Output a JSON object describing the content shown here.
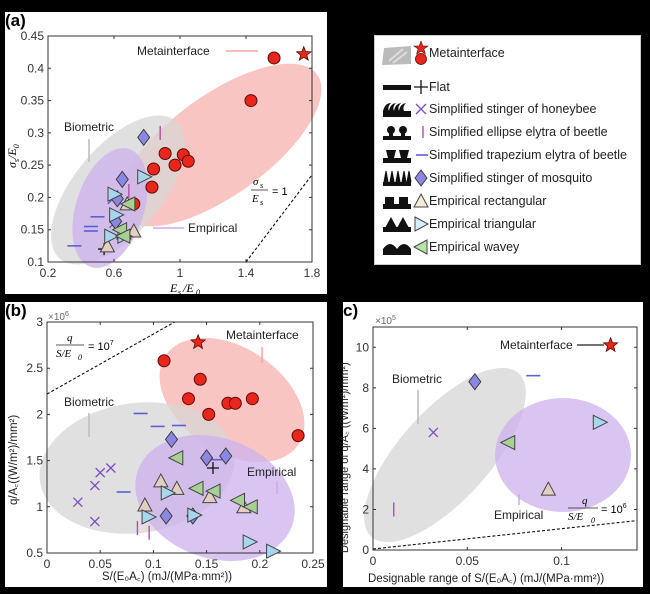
{
  "figure": {
    "panel_labels": [
      "(a)",
      "(b)",
      "c)"
    ]
  },
  "legend": {
    "items": [
      {
        "label": "Metainterface",
        "marker": "star-and-circle",
        "color": "#e8261b",
        "structure_icon": "textured-surface-icon"
      },
      {
        "label": "Flat",
        "marker": "plus",
        "color": "#111111",
        "structure_icon": "flat-bar-icon"
      },
      {
        "label": "Simplified stinger of honeybee",
        "marker": "x",
        "color": "#7b4fbf",
        "structure_icon": "curved-spikes-icon"
      },
      {
        "label": "Simplified ellipse elytra of beetle",
        "marker": "vline",
        "color": "#b04fa8",
        "structure_icon": "mushroom-pillars-icon"
      },
      {
        "label": "Simplified trapezium elytra of beetle",
        "marker": "hline",
        "color": "#5a5fd6",
        "structure_icon": "trapezium-pillars-icon"
      },
      {
        "label": "Simplified stinger of mosquito",
        "marker": "diamond",
        "color": "#8b87e0",
        "structure_icon": "needle-spikes-icon"
      },
      {
        "label": "Empirical rectangular",
        "marker": "triangle-up",
        "color": "#e3cfc0",
        "structure_icon": "rectangular-pillars-icon"
      },
      {
        "label": "Empirical triangular",
        "marker": "triangle-right",
        "color": "#a9d6ef",
        "structure_icon": "triangular-peaks-icon"
      },
      {
        "label": "Empirical wavey",
        "marker": "triangle-left",
        "color": "#a8cf94",
        "structure_icon": "wavy-bumps-icon"
      }
    ]
  },
  "chart_data": [
    {
      "id": "a",
      "type": "scatter",
      "panel_label": "(a)",
      "xlabel": "E_s / E_0",
      "ylabel": "σ_s / E_0",
      "xlim": [
        0.2,
        1.8
      ],
      "ylim": [
        0.1,
        0.45
      ],
      "xticks": [
        0.2,
        0.6,
        1,
        1.4,
        1.8
      ],
      "xtick_labels": [
        "0.2",
        "0.6",
        "1",
        "1.4",
        "1.8"
      ],
      "yticks": [
        0.1,
        0.15,
        0.2,
        0.25,
        0.3,
        0.35,
        0.4,
        0.45
      ],
      "ytick_labels": [
        "0.1",
        "0.15",
        "0.2",
        "0.25",
        "0.3",
        "0.35",
        "0.4",
        "0.45"
      ],
      "regions": [
        {
          "name": "Metainterface",
          "color": "#f4a5a0",
          "label": "Metainterface"
        },
        {
          "name": "Biometric",
          "color": "#cfcfcf",
          "label": "Biometric"
        },
        {
          "name": "Empirical",
          "color": "#c9a9ea",
          "label": "Empirical"
        }
      ],
      "reference_line": {
        "label": "σs/Es = 1",
        "x": [
          1.4,
          1.8
        ],
        "y": [
          0.1,
          0.235
        ]
      },
      "series": [
        {
          "name": "Metainterface (star)",
          "marker": "star",
          "points": [
            [
              1.75,
              0.422
            ]
          ]
        },
        {
          "name": "Metainterface",
          "marker": "circle",
          "points": [
            [
              1.57,
              0.416
            ],
            [
              1.43,
              0.35
            ],
            [
              0.91,
              0.268
            ],
            [
              1.02,
              0.266
            ],
            [
              0.97,
              0.25
            ],
            [
              1.05,
              0.256
            ],
            [
              0.84,
              0.244
            ],
            [
              0.83,
              0.216
            ],
            [
              0.72,
              0.19
            ]
          ]
        },
        {
          "name": "Flat",
          "marker": "plus",
          "points": [
            [
              0.54,
              0.12
            ]
          ]
        },
        {
          "name": "Simplified stinger of honeybee",
          "marker": "x",
          "points": [
            [
              0.59,
              0.197
            ],
            [
              0.6,
              0.16
            ]
          ]
        },
        {
          "name": "Simplified ellipse elytra of beetle",
          "marker": "vline",
          "points": [
            [
              0.88,
              0.3
            ],
            [
              0.69,
              0.21
            ]
          ]
        },
        {
          "name": "Simplified trapezium elytra of beetle",
          "marker": "hline",
          "points": [
            [
              0.36,
              0.125
            ],
            [
              0.46,
              0.148
            ],
            [
              0.46,
              0.155
            ],
            [
              0.5,
              0.17
            ]
          ]
        },
        {
          "name": "Simplified stinger of mosquito",
          "marker": "diamond",
          "points": [
            [
              0.78,
              0.293
            ],
            [
              0.65,
              0.228
            ],
            [
              0.62,
              0.198
            ],
            [
              0.61,
              0.163
            ]
          ]
        },
        {
          "name": "Empirical rectangular",
          "marker": "triangle-up",
          "points": [
            [
              0.68,
              0.19
            ],
            [
              0.72,
              0.148
            ],
            [
              0.66,
              0.145
            ],
            [
              0.56,
              0.125
            ]
          ]
        },
        {
          "name": "Empirical triangular",
          "marker": "triangle-right",
          "points": [
            [
              0.78,
              0.232
            ],
            [
              0.6,
              0.205
            ],
            [
              0.61,
              0.173
            ],
            [
              0.58,
              0.14
            ],
            [
              0.66,
              0.14
            ]
          ]
        },
        {
          "name": "Empirical wavey",
          "marker": "triangle-left",
          "points": [
            [
              0.64,
              0.15
            ],
            [
              0.66,
              0.14
            ],
            [
              0.69,
              0.19
            ]
          ]
        }
      ]
    },
    {
      "id": "b",
      "type": "scatter",
      "panel_label": "(b)",
      "xlabel": "S/(E_0 A_c) (mJ/(MPa·mm²))",
      "ylabel": "q/A_c ((W/m²)/mm²)",
      "y_multiplier": "×10^6",
      "xlim": [
        0,
        0.25
      ],
      "ylim": [
        0.5,
        3
      ],
      "xticks": [
        0,
        0.05,
        0.1,
        0.15,
        0.2,
        0.25
      ],
      "xtick_labels": [
        "0",
        "0.05",
        "0.1",
        "0.15",
        "0.2",
        "0.25"
      ],
      "yticks": [
        0.5,
        1,
        1.5,
        2,
        2.5,
        3
      ],
      "ytick_labels": [
        "0.5",
        "1",
        "1.5",
        "2",
        "2.5",
        "3"
      ],
      "regions": [
        {
          "name": "Metainterface",
          "color": "#f4a5a0",
          "label": "Metainterface"
        },
        {
          "name": "Biometric",
          "color": "#cfcfcf",
          "label": "Biometric"
        },
        {
          "name": "Empirical",
          "color": "#c9a9ea",
          "label": "Empirical"
        }
      ],
      "reference_line": {
        "label": "q/(S/E0) = 10^7",
        "x": [
          0,
          0.12
        ],
        "y": [
          2.22,
          3.0
        ]
      },
      "series": [
        {
          "name": "Metainterface (star)",
          "marker": "star",
          "points": [
            [
              0.142,
              2.78
            ]
          ]
        },
        {
          "name": "Metainterface",
          "marker": "circle",
          "points": [
            [
              0.11,
              2.58
            ],
            [
              0.144,
              2.38
            ],
            [
              0.133,
              2.17
            ],
            [
              0.152,
              2.0
            ],
            [
              0.17,
              2.12
            ],
            [
              0.177,
              2.12
            ],
            [
              0.193,
              2.17
            ],
            [
              0.236,
              1.77
            ]
          ]
        },
        {
          "name": "Flat",
          "marker": "plus",
          "points": [
            [
              0.156,
              1.42
            ]
          ]
        },
        {
          "name": "Simplified stinger of honeybee",
          "marker": "x",
          "points": [
            [
              0.029,
              1.05
            ],
            [
              0.045,
              1.23
            ],
            [
              0.05,
              1.37
            ],
            [
              0.06,
              1.42
            ],
            [
              0.045,
              0.84
            ]
          ]
        },
        {
          "name": "Simplified ellipse elytra of beetle",
          "marker": "vline",
          "points": [
            [
              0.085,
              0.77
            ],
            [
              0.096,
              0.72
            ]
          ]
        },
        {
          "name": "Simplified trapezium elytra of beetle",
          "marker": "hline",
          "points": [
            [
              0.088,
              2.01
            ],
            [
              0.104,
              1.87
            ],
            [
              0.124,
              1.88
            ],
            [
              0.072,
              1.16
            ],
            [
              0.158,
              1.51
            ]
          ]
        },
        {
          "name": "Simplified stinger of mosquito",
          "marker": "diamond",
          "points": [
            [
              0.117,
              1.73
            ],
            [
              0.15,
              1.53
            ],
            [
              0.168,
              1.55
            ],
            [
              0.112,
              0.9
            ],
            [
              0.137,
              0.9
            ]
          ]
        },
        {
          "name": "Empirical rectangular",
          "marker": "triangle-up",
          "points": [
            [
              0.107,
              1.28
            ],
            [
              0.122,
              1.2
            ],
            [
              0.092,
              1.02
            ],
            [
              0.153,
              1.11
            ],
            [
              0.185,
              1.0
            ]
          ]
        },
        {
          "name": "Empirical triangular",
          "marker": "triangle-right",
          "points": [
            [
              0.113,
              1.15
            ],
            [
              0.095,
              0.89
            ],
            [
              0.138,
              0.91
            ],
            [
              0.19,
              0.62
            ],
            [
              0.212,
              0.52
            ]
          ]
        },
        {
          "name": "Empirical wavey",
          "marker": "triangle-left",
          "points": [
            [
              0.122,
              1.53
            ],
            [
              0.141,
              1.2
            ],
            [
              0.157,
              1.17
            ],
            [
              0.18,
              1.07
            ],
            [
              0.192,
              1.0
            ]
          ]
        }
      ]
    },
    {
      "id": "c",
      "type": "scatter",
      "panel_label": "c)",
      "xlabel": "Designable range of S/(E_0 A_c) (mJ/(MPa·mm²))",
      "ylabel": "Designable range of q/A_c ((W/m²)/mm²)",
      "y_multiplier": "×10^5",
      "xlim": [
        0,
        0.14
      ],
      "ylim": [
        0,
        11
      ],
      "xticks": [
        0,
        0.05,
        0.1
      ],
      "xtick_labels": [
        "0",
        "0.05",
        "0.1"
      ],
      "yticks": [
        0,
        2,
        4,
        6,
        8,
        10
      ],
      "ytick_labels": [
        "0",
        "2",
        "4",
        "6",
        "8",
        "10"
      ],
      "regions": [
        {
          "name": "Biometric",
          "color": "#cfcfcf",
          "label": "Biometric"
        },
        {
          "name": "Empirical",
          "color": "#c9a9ea",
          "label": "Empirical"
        }
      ],
      "annotations": [
        {
          "label": "Metainterface",
          "points_to": [
            0.126,
            10.1
          ]
        }
      ],
      "reference_line": {
        "label": "q/(S/E0) = 10^6",
        "x": [
          0,
          0.14
        ],
        "y": [
          0.05,
          1.45
        ]
      },
      "series": [
        {
          "name": "Metainterface (star)",
          "marker": "star",
          "points": [
            [
              0.126,
              10.1
            ]
          ]
        },
        {
          "name": "Simplified stinger of honeybee",
          "marker": "x",
          "points": [
            [
              0.032,
              5.8
            ]
          ]
        },
        {
          "name": "Simplified ellipse elytra of beetle",
          "marker": "vline",
          "points": [
            [
              0.011,
              2.0
            ]
          ]
        },
        {
          "name": "Simplified trapezium elytra of beetle",
          "marker": "hline",
          "points": [
            [
              0.085,
              8.6
            ]
          ]
        },
        {
          "name": "Simplified stinger of mosquito",
          "marker": "diamond",
          "points": [
            [
              0.054,
              8.3
            ]
          ]
        },
        {
          "name": "Empirical rectangular",
          "marker": "triangle-up",
          "points": [
            [
              0.093,
              3.0
            ]
          ]
        },
        {
          "name": "Empirical triangular",
          "marker": "triangle-right",
          "points": [
            [
              0.12,
              6.3
            ]
          ]
        },
        {
          "name": "Empirical wavey",
          "marker": "triangle-left",
          "points": [
            [
              0.072,
              5.3
            ]
          ]
        }
      ]
    }
  ],
  "labels": {
    "a": {
      "metainterface": "Metainterface",
      "biometric": "Biometric",
      "empirical": "Empirical",
      "ref_num": "σ",
      "ref_num_sub": "s",
      "ref_den": "E",
      "ref_den_sub": "s",
      "ref_rhs": "= 1",
      "xlabel_main": "E",
      "xlabel_sub1": "s",
      "xlabel_mid": "/E",
      "xlabel_sub2": "0",
      "ylabel": "σs/E0"
    },
    "b": {
      "metainterface": "Metainterface",
      "biometric": "Biometric",
      "empirical": "Empirical",
      "multiplier": "×10",
      "multiplier_exp": "6",
      "ref_num": "q",
      "ref_den": "S/E",
      "ref_den_sub": "0",
      "ref_rhs": "= 10",
      "ref_rhs_exp": "7",
      "xlabel": "S/(E₀A꜀) (mJ/(MPa·mm²))",
      "ylabel": "q/A꜀((W/m²)/mm²)"
    },
    "c": {
      "metainterface": "Metainterface",
      "biometric": "Biometric",
      "empirical": "Empirical",
      "multiplier": "×10",
      "multiplier_exp": "5",
      "ref_num": "q",
      "ref_den": "S/E",
      "ref_den_sub": "0",
      "ref_rhs": "= 10",
      "ref_rhs_exp": "6",
      "xlabel": "Designable range of S/(E₀A꜀) (mJ/(MPa·mm²))",
      "ylabel": "Designable range of q/A꜀ ((W/m²)/mm²)"
    }
  }
}
